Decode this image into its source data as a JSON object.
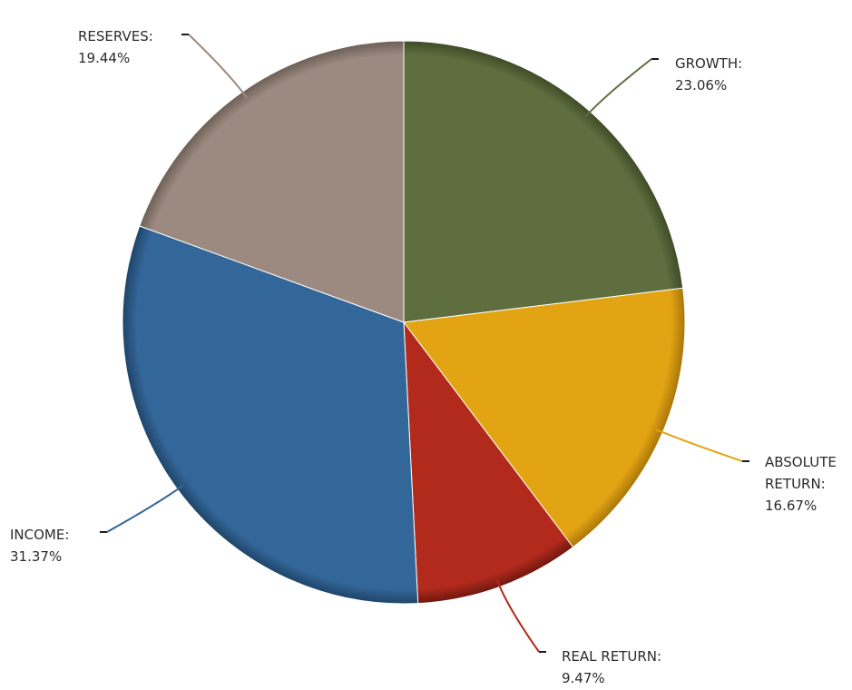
{
  "chart_data": {
    "type": "pie",
    "title": "",
    "slices": [
      {
        "label_lines": [
          "GROWTH:"
        ],
        "value": 23.06,
        "value_text": "23.06%",
        "color": "#5e6e3e",
        "edge": "#3f4b27"
      },
      {
        "label_lines": [
          "ABSOLUTE",
          "RETURN:"
        ],
        "value": 16.67,
        "value_text": "16.67%",
        "color": "#e3a414",
        "edge": "#a8760a"
      },
      {
        "label_lines": [
          "REAL RETURN:"
        ],
        "value": 9.47,
        "value_text": "9.47%",
        "color": "#b22a1c",
        "edge": "#6f1710"
      },
      {
        "label_lines": [
          "INCOME:"
        ],
        "value": 31.37,
        "value_text": "31.37%",
        "color": "#336699",
        "edge": "#1f4468"
      },
      {
        "label_lines": [
          "RESERVES:"
        ],
        "value": 19.44,
        "value_text": "19.44%",
        "color": "#9c8a80",
        "edge": "#6d5f57"
      }
    ],
    "start_angle_deg": 0,
    "direction": "clockwise",
    "legend": "none",
    "labels": "outside-with-leader-lines"
  }
}
